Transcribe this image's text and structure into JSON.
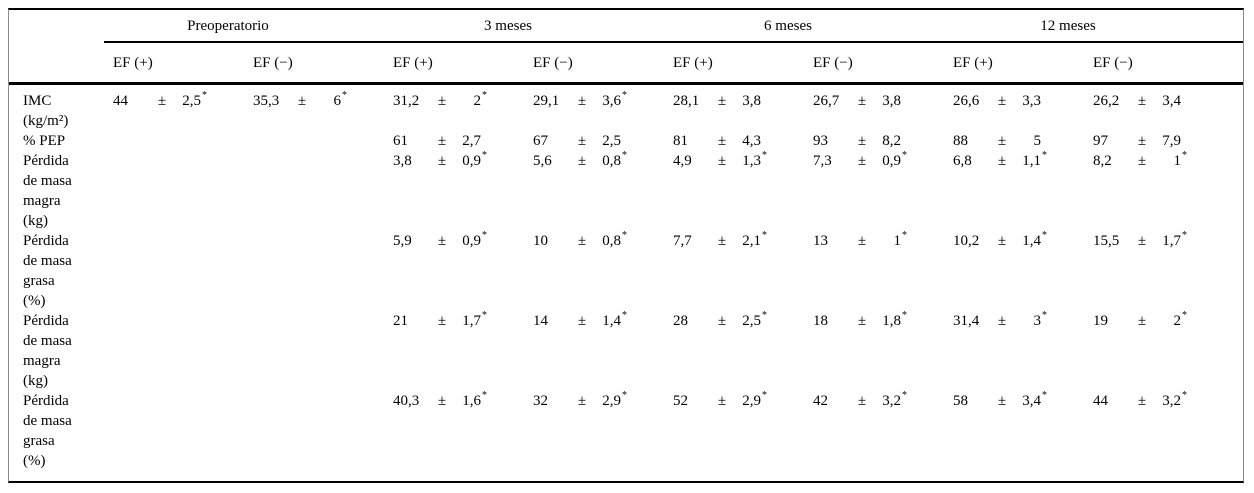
{
  "table": {
    "period_groups": [
      {
        "label": "Preoperatorio"
      },
      {
        "label": "3 meses"
      },
      {
        "label": "6 meses"
      },
      {
        "label": "12 meses"
      }
    ],
    "subheaders": [
      "EF (+)",
      "EF (−)",
      "EF (+)",
      "EF (−)",
      "EF (+)",
      "EF (−)",
      "EF (+)",
      "EF (−)"
    ],
    "plus_minus": "±",
    "significance_marker": "*",
    "rows": [
      {
        "label_lines": [
          "IMC",
          "(kg/m²)"
        ],
        "cells": [
          {
            "value": "44",
            "error": "2,5",
            "star": true
          },
          {
            "value": "35,3",
            "error": "6",
            "star": true
          },
          {
            "value": "31,2",
            "error": "2",
            "star": true
          },
          {
            "value": "29,1",
            "error": "3,6",
            "star": true
          },
          {
            "value": "28,1",
            "error": "3,8",
            "star": false
          },
          {
            "value": "26,7",
            "error": "3,8",
            "star": false
          },
          {
            "value": "26,6",
            "error": "3,3",
            "star": false
          },
          {
            "value": "26,2",
            "error": "3,4",
            "star": false
          }
        ]
      },
      {
        "label_lines": [
          "% PEP"
        ],
        "cells": [
          null,
          null,
          {
            "value": "61",
            "error": "2,7",
            "star": false
          },
          {
            "value": "67",
            "error": "2,5",
            "star": false
          },
          {
            "value": "81",
            "error": "4,3",
            "star": false
          },
          {
            "value": "93",
            "error": "8,2",
            "star": false
          },
          {
            "value": "88",
            "error": "5",
            "star": false
          },
          {
            "value": "97",
            "error": "7,9",
            "star": false
          }
        ]
      },
      {
        "label_lines": [
          "Pérdida",
          "de masa",
          "magra",
          "(kg)"
        ],
        "cells": [
          null,
          null,
          {
            "value": "3,8",
            "error": "0,9",
            "star": true
          },
          {
            "value": "5,6",
            "error": "0,8",
            "star": true
          },
          {
            "value": "4,9",
            "error": "1,3",
            "star": true
          },
          {
            "value": "7,3",
            "error": "0,9",
            "star": true
          },
          {
            "value": "6,8",
            "error": "1,1",
            "star": true
          },
          {
            "value": "8,2",
            "error": "1",
            "star": true
          }
        ]
      },
      {
        "label_lines": [
          "Pérdida",
          "de masa",
          "grasa",
          "(%)"
        ],
        "cells": [
          null,
          null,
          {
            "value": "5,9",
            "error": "0,9",
            "star": true
          },
          {
            "value": "10",
            "error": "0,8",
            "star": true
          },
          {
            "value": "7,7",
            "error": "2,1",
            "star": true
          },
          {
            "value": "13",
            "error": "1",
            "star": true
          },
          {
            "value": "10,2",
            "error": "1,4",
            "star": true
          },
          {
            "value": "15,5",
            "error": "1,7",
            "star": true
          }
        ]
      },
      {
        "label_lines": [
          "Pérdida",
          "de masa",
          "magra",
          "(kg)"
        ],
        "cells": [
          null,
          null,
          {
            "value": "21",
            "error": "1,7",
            "star": true
          },
          {
            "value": "14",
            "error": "1,4",
            "star": true
          },
          {
            "value": "28",
            "error": "2,5",
            "star": true
          },
          {
            "value": "18",
            "error": "1,8",
            "star": true
          },
          {
            "value": "31,4",
            "error": "3",
            "star": true
          },
          {
            "value": "19",
            "error": "2",
            "star": true
          }
        ]
      },
      {
        "label_lines": [
          "Pérdida",
          "de masa",
          "grasa",
          "(%)"
        ],
        "cells": [
          null,
          null,
          {
            "value": "40,3",
            "error": "1,6",
            "star": true
          },
          {
            "value": "32",
            "error": "2,9",
            "star": true
          },
          {
            "value": "52",
            "error": "2,9",
            "star": true
          },
          {
            "value": "42",
            "error": "3,2",
            "star": true
          },
          {
            "value": "58",
            "error": "3,4",
            "star": true
          },
          {
            "value": "44",
            "error": "3,2",
            "star": true
          }
        ]
      }
    ]
  }
}
